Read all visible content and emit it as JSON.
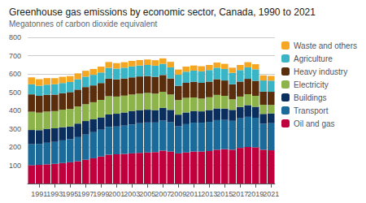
{
  "chart_data": {
    "type": "bar",
    "title": "Greenhouse gas emissions by economic sector, Canada, 1990 to 2021",
    "subtitle": "Megatonnes of carbon dioxide equivalent",
    "categories": [
      null,
      "1991",
      null,
      "1993",
      null,
      "1995",
      null,
      "1997",
      null,
      "1999",
      null,
      "2001",
      null,
      "2003",
      null,
      "2005",
      null,
      "2007",
      null,
      "2009",
      null,
      "2011",
      null,
      "2013",
      null,
      "2015",
      null,
      "2017",
      null,
      "2019",
      null,
      "2021"
    ],
    "series": [
      {
        "name": "Oil and gas",
        "color": "#c0003c",
        "values": [
          100,
          102,
          105,
          108,
          112,
          116,
          122,
          130,
          138,
          148,
          158,
          160,
          162,
          165,
          168,
          170,
          172,
          180,
          175,
          165,
          170,
          175,
          175,
          178,
          185,
          188,
          185,
          195,
          200,
          198,
          185,
          182
        ]
      },
      {
        "name": "Transport",
        "color": "#1a6b9a",
        "values": [
          115,
          115,
          118,
          120,
          124,
          126,
          132,
          138,
          143,
          146,
          152,
          152,
          155,
          158,
          162,
          164,
          162,
          164,
          160,
          148,
          155,
          158,
          158,
          160,
          162,
          160,
          158,
          162,
          165,
          162,
          142,
          148
        ]
      },
      {
        "name": "Buildings",
        "color": "#0a2f5f",
        "values": [
          78,
          75,
          76,
          74,
          72,
          70,
          74,
          74,
          70,
          68,
          68,
          70,
          72,
          74,
          72,
          70,
          68,
          70,
          68,
          64,
          64,
          64,
          62,
          64,
          64,
          62,
          60,
          62,
          64,
          60,
          54,
          54
        ]
      },
      {
        "name": "Electricity",
        "color": "#8db44a",
        "values": [
          100,
          96,
          95,
          95,
          96,
          96,
          94,
          92,
          94,
          96,
          100,
          94,
          92,
          90,
          90,
          92,
          90,
          88,
          84,
          80,
          80,
          74,
          70,
          70,
          74,
          70,
          58,
          57,
          60,
          60,
          50,
          46
        ]
      },
      {
        "name": "Heavy industry",
        "color": "#5a2d0c",
        "values": [
          95,
          92,
          92,
          90,
          90,
          92,
          92,
          94,
          92,
          92,
          96,
          94,
          94,
          94,
          94,
          92,
          92,
          92,
          88,
          78,
          82,
          86,
          86,
          86,
          86,
          84,
          82,
          82,
          84,
          82,
          72,
          72
        ]
      },
      {
        "name": "Agriculture",
        "color": "#3ab5c6",
        "values": [
          55,
          55,
          55,
          56,
          56,
          56,
          57,
          57,
          58,
          58,
          59,
          59,
          59,
          60,
          60,
          61,
          61,
          61,
          61,
          61,
          61,
          61,
          63,
          63,
          63,
          63,
          63,
          63,
          63,
          63,
          61,
          61
        ]
      },
      {
        "name": "Waste and others",
        "color": "#f5a623",
        "values": [
          38,
          36,
          36,
          34,
          34,
          32,
          32,
          32,
          32,
          32,
          32,
          30,
          30,
          30,
          30,
          30,
          30,
          30,
          30,
          28,
          28,
          28,
          28,
          28,
          28,
          28,
          28,
          28,
          28,
          28,
          28,
          26
        ]
      }
    ],
    "stacked": true,
    "ylim": [
      0,
      800
    ],
    "yticks": [
      {
        "value": 0,
        "label": null
      },
      100,
      200,
      300,
      400,
      500,
      600,
      700,
      800
    ],
    "grid": true,
    "legend": "right"
  }
}
